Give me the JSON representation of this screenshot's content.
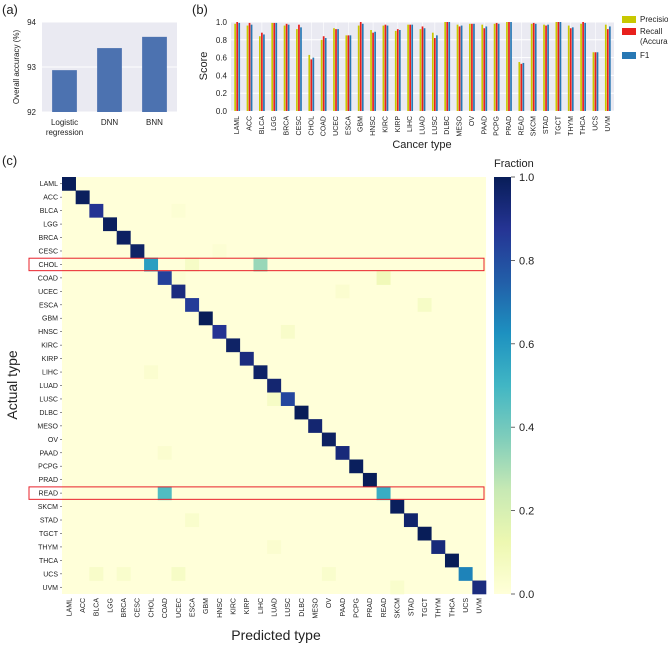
{
  "panels": {
    "a": "(a)",
    "b": "(b)",
    "c": "(c)"
  },
  "chart_data": [
    {
      "type": "bar",
      "categories": [
        "Logistic regression",
        "DNN",
        "BNN"
      ],
      "category_lines": [
        [
          "Logistic",
          "regression"
        ],
        [
          "DNN"
        ],
        [
          "BNN"
        ]
      ],
      "values": [
        92.93,
        93.42,
        93.67
      ],
      "ylabel": "Overall accuracy (%)",
      "ylim": [
        92,
        94
      ],
      "yticks": [
        "92",
        "93",
        "94"
      ],
      "bar_color": "#4c72b0",
      "grid": true
    },
    {
      "type": "bar",
      "xlabel": "Cancer type",
      "ylabel": "Score",
      "ylim": [
        0,
        1.0
      ],
      "yticks": [
        "0.0",
        "0.2",
        "0.4",
        "0.6",
        "0.8",
        "1.0"
      ],
      "categories": [
        "LAML",
        "ACC",
        "BLCA",
        "LGG",
        "BRCA",
        "CESC",
        "CHOL",
        "COAD",
        "UCEC",
        "ESCA",
        "GBM",
        "HNSC",
        "KIRC",
        "KIRP",
        "LIHC",
        "LUAD",
        "LUSC",
        "DLBC",
        "MESO",
        "OV",
        "PAAD",
        "PCPG",
        "PRAD",
        "READ",
        "SKCM",
        "STAD",
        "TGCT",
        "THYM",
        "THCA",
        "UCS",
        "UVM"
      ],
      "series": [
        {
          "name": "Precision",
          "color": "#c8c800",
          "values": [
            0.98,
            0.96,
            0.84,
            0.99,
            0.96,
            0.92,
            0.63,
            0.8,
            0.93,
            0.85,
            0.96,
            0.91,
            0.96,
            0.9,
            0.97,
            0.92,
            0.88,
            1.0,
            0.97,
            0.98,
            0.97,
            0.98,
            1.0,
            0.55,
            0.98,
            0.97,
            1.0,
            0.96,
            0.98,
            0.66,
            0.97
          ]
        },
        {
          "name": "Recall\n(Accuracy)",
          "legend_lines": [
            "Recall",
            "(Accuracy)"
          ],
          "color": "#e8201c",
          "values": [
            1.0,
            0.99,
            0.88,
            0.99,
            0.98,
            0.97,
            0.58,
            0.84,
            0.92,
            0.85,
            1.0,
            0.88,
            0.97,
            0.92,
            0.97,
            0.95,
            0.82,
            1.0,
            0.95,
            0.98,
            0.93,
            0.99,
            1.0,
            0.53,
            0.99,
            0.96,
            1.0,
            0.93,
            1.0,
            0.66,
            0.92
          ]
        },
        {
          "name": "F1",
          "color": "#2878b4",
          "values": [
            0.99,
            0.97,
            0.86,
            0.99,
            0.97,
            0.94,
            0.6,
            0.82,
            0.92,
            0.85,
            0.98,
            0.89,
            0.96,
            0.91,
            0.97,
            0.93,
            0.85,
            1.0,
            0.96,
            0.98,
            0.95,
            0.98,
            1.0,
            0.54,
            0.98,
            0.97,
            1.0,
            0.94,
            0.99,
            0.66,
            0.95
          ]
        }
      ],
      "grid": true
    },
    {
      "type": "heatmap",
      "xlabel": "Predicted type",
      "ylabel": "Actual type",
      "labels": [
        "LAML",
        "ACC",
        "BLCA",
        "LGG",
        "BRCA",
        "CESC",
        "CHOL",
        "COAD",
        "UCEC",
        "ESCA",
        "GBM",
        "HNSC",
        "KIRC",
        "KIRP",
        "LIHC",
        "LUAD",
        "LUSC",
        "DLBC",
        "MESO",
        "OV",
        "PAAD",
        "PCPG",
        "PRAD",
        "READ",
        "SKCM",
        "STAD",
        "TGCT",
        "THYM",
        "THCA",
        "UCS",
        "UVM"
      ],
      "diagonal": [
        1.0,
        0.99,
        0.88,
        0.99,
        0.98,
        0.97,
        0.58,
        0.84,
        0.92,
        0.85,
        1.0,
        0.88,
        0.97,
        0.92,
        0.97,
        0.95,
        0.82,
        1.0,
        0.95,
        0.98,
        0.93,
        0.99,
        1.0,
        0.53,
        0.99,
        0.96,
        1.0,
        0.93,
        1.0,
        0.66,
        0.92
      ],
      "off_diagonal": [
        {
          "row": "CHOL",
          "col": "LIHC",
          "value": 0.33
        },
        {
          "row": "CHOL",
          "col": "ESCA",
          "value": 0.06
        },
        {
          "row": "READ",
          "col": "COAD",
          "value": 0.47
        },
        {
          "row": "COAD",
          "col": "READ",
          "value": 0.1
        },
        {
          "row": "ESCA",
          "col": "TGCT",
          "value": 0.06
        },
        {
          "row": "UCS",
          "col": "UCEC",
          "value": 0.06
        },
        {
          "row": "UCS",
          "col": "BLCA",
          "value": 0.05
        },
        {
          "row": "UCS",
          "col": "BRCA",
          "value": 0.04
        },
        {
          "row": "UCS",
          "col": "OV",
          "value": 0.04
        },
        {
          "row": "HNSC",
          "col": "LUSC",
          "value": 0.05
        },
        {
          "row": "LUSC",
          "col": "LUAD",
          "value": 0.06
        },
        {
          "row": "UCEC",
          "col": "PAAD",
          "value": 0.03
        },
        {
          "row": "UVM",
          "col": "SKCM",
          "value": 0.04
        },
        {
          "row": "CESC",
          "col": "HNSC",
          "value": 0.02
        },
        {
          "row": "BLCA",
          "col": "UCEC",
          "value": 0.02
        },
        {
          "row": "PAAD",
          "col": "COAD",
          "value": 0.03
        },
        {
          "row": "THYM",
          "col": "LUAD",
          "value": 0.03
        },
        {
          "row": "STAD",
          "col": "ESCA",
          "value": 0.04
        },
        {
          "row": "COAD",
          "col": "UCEC",
          "value": 0.02
        },
        {
          "row": "LIHC",
          "col": "CHOL",
          "value": 0.03
        }
      ],
      "highlighted_rows": [
        "CHOL",
        "READ"
      ],
      "highlight_color": "#e8202a",
      "colorbar": {
        "title": "Fraction",
        "ticks": [
          "1.0",
          "0.8",
          "0.6",
          "0.4",
          "0.2",
          "0.0"
        ],
        "range": [
          0,
          1
        ]
      },
      "colormap": "YlGnBu"
    }
  ]
}
